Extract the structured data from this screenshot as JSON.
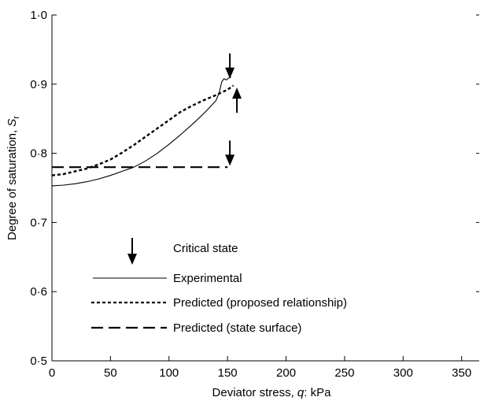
{
  "chart_data": {
    "type": "line",
    "xlabel": "Deviator stress, q: kPa",
    "ylabel": "Degree of saturation, Sr",
    "xlim": [
      0,
      365
    ],
    "ylim": [
      0.5,
      1.0
    ],
    "x_ticks": [
      0,
      50,
      100,
      150,
      200,
      250,
      300,
      350
    ],
    "x_tick_labels": [
      "0",
      "50",
      "100",
      "150",
      "200",
      "250",
      "300",
      "350"
    ],
    "y_ticks": [
      0.5,
      0.6,
      0.7,
      0.8,
      0.9,
      1.0
    ],
    "y_tick_labels": [
      "0·5",
      "0·6",
      "0·7",
      "0·8",
      "0·9",
      "1·0"
    ],
    "grid": false,
    "legend_placement": "bottom-left",
    "legend": {
      "critical_state": "Critical state",
      "experimental": "Experimental",
      "predicted_proposed": "Predicted (proposed relationship)",
      "predicted_state_surface": "Predicted (state surface)"
    },
    "series": [
      {
        "name": "Experimental",
        "style": "solid",
        "x": [
          0,
          10,
          20,
          30,
          40,
          50,
          60,
          70,
          80,
          90,
          100,
          110,
          120,
          130,
          140,
          143,
          145,
          147,
          149,
          151,
          153
        ],
        "y": [
          0.753,
          0.754,
          0.756,
          0.759,
          0.763,
          0.768,
          0.774,
          0.78,
          0.789,
          0.8,
          0.813,
          0.827,
          0.842,
          0.858,
          0.876,
          0.888,
          0.903,
          0.908,
          0.906,
          0.909,
          0.91
        ]
      },
      {
        "name": "Predicted (proposed relationship)",
        "style": "dotted",
        "x": [
          0,
          10,
          20,
          30,
          40,
          50,
          60,
          70,
          80,
          90,
          100,
          110,
          120,
          130,
          140,
          150,
          155
        ],
        "y": [
          0.768,
          0.77,
          0.774,
          0.778,
          0.784,
          0.791,
          0.801,
          0.812,
          0.824,
          0.836,
          0.848,
          0.86,
          0.869,
          0.877,
          0.884,
          0.892,
          0.898
        ]
      },
      {
        "name": "Predicted (state surface)",
        "style": "dashed",
        "x": [
          0,
          150
        ],
        "y": [
          0.78,
          0.78
        ]
      }
    ],
    "critical_state_markers": [
      {
        "x": 152,
        "y": 0.908,
        "direction": "down"
      },
      {
        "x": 158,
        "y": 0.895,
        "direction": "up"
      },
      {
        "x": 152,
        "y": 0.782,
        "direction": "down"
      }
    ]
  }
}
